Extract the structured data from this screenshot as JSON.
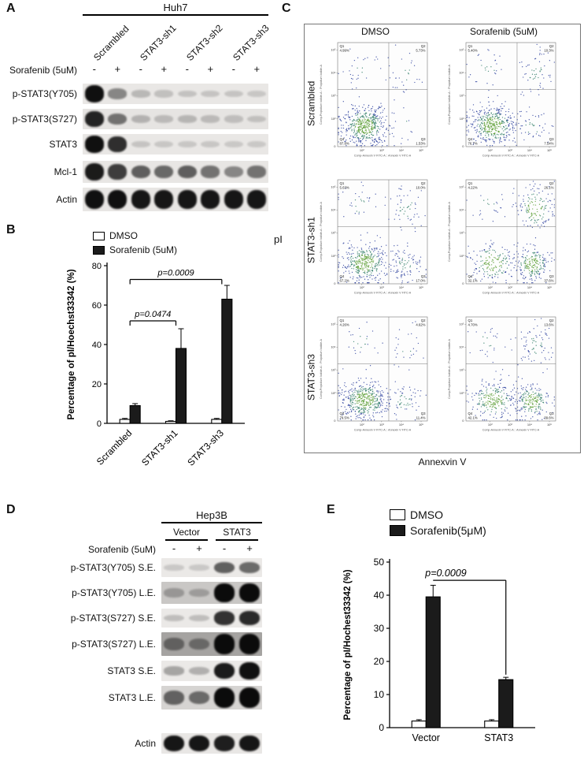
{
  "colors": {
    "scatter_sparse": "#2c3f9e",
    "scatter_mid": "#2f7d66",
    "scatter_dense": "#5a9e32",
    "bar_dark": "#1b1b1b",
    "bar_light": "#ffffff"
  },
  "panel_a": {
    "label": "A",
    "cell_line": "Huh7",
    "treatment_label": "Sorafenib (5uM)",
    "lane_groups": [
      "Scrambled",
      "STAT3-sh1",
      "STAT3-sh2",
      "STAT3-sh3"
    ],
    "lane_signs": [
      "-",
      "+",
      "-",
      "+",
      "-",
      "+",
      "-",
      "+"
    ],
    "blots": [
      {
        "label": "p-STAT3(Y705)",
        "bg": 0.07,
        "bands": [
          0.95,
          0.35,
          0.1,
          0.06,
          0.05,
          0.04,
          0.04,
          0.03
        ]
      },
      {
        "label": "p-STAT3(S727)",
        "bg": 0.09,
        "bands": [
          0.85,
          0.45,
          0.12,
          0.08,
          0.1,
          0.08,
          0.06,
          0.05
        ]
      },
      {
        "label": "STAT3",
        "bg": 0.07,
        "bands": [
          0.95,
          0.8,
          0.04,
          0.03,
          0.03,
          0.03,
          0.02,
          0.02
        ]
      },
      {
        "label": "Mcl-1",
        "bg": 0.08,
        "bands": [
          0.9,
          0.72,
          0.55,
          0.5,
          0.55,
          0.45,
          0.35,
          0.45
        ]
      },
      {
        "label": "Actin",
        "bg": 0.08,
        "bands": [
          0.95,
          0.95,
          0.92,
          0.92,
          0.92,
          0.92,
          0.92,
          0.92
        ]
      }
    ]
  },
  "panel_b": {
    "label": "B",
    "chart_data": {
      "type": "bar",
      "categories": [
        "Scrambled",
        "STAT3-sh1",
        "STAT3-sh3"
      ],
      "series": [
        {
          "name": "DMSO",
          "fill": "#ffffff",
          "values": [
            2,
            1,
            2
          ],
          "errors": [
            0.5,
            0.3,
            0.5
          ]
        },
        {
          "name": "Sorafenib (5uM)",
          "fill": "#1b1b1b",
          "values": [
            9,
            38,
            63
          ],
          "errors": [
            1,
            10,
            7
          ]
        }
      ],
      "ylabel": "Percentage of pI/Hoechst33342 (%)",
      "ylim": [
        0,
        80
      ],
      "yticks": [
        0,
        20,
        40,
        60,
        80
      ],
      "grid": false,
      "legend_position": "top-left",
      "annotations": [
        {
          "type": "bracket",
          "text": "p=0.0474",
          "from": 0,
          "to": 1,
          "y": 52
        },
        {
          "type": "bracket",
          "text": "p=0.0009",
          "from": 0,
          "to": 2,
          "y": 73
        }
      ]
    }
  },
  "panel_c": {
    "label": "C",
    "col_headers": [
      "DMSO",
      "Sorafenib (5uM)"
    ],
    "row_labels": [
      "Scrambled",
      "STAT3-sh1",
      "STAT3-sh3"
    ],
    "outer_y_label": "pI",
    "outer_x_label": "Annexvin V",
    "plot_axis_y_label": "Comp-Propidium Iodide-A :: Propidium Iodide-A",
    "plot_axis_x_label": "Comp-Annexin V FITC-A :: Annexin V FITC-A",
    "axis_ticks": [
      "0",
      "10²",
      "10³",
      "10⁴",
      "10⁵"
    ],
    "quadrant_names": [
      "Q1",
      "Q2",
      "Q3",
      "Q4"
    ],
    "plots": [
      {
        "row": "Scrambled",
        "col": "DMSO",
        "q1": "4.99%",
        "q2": "5.73%",
        "q3": "1.53%",
        "q4": "87.8%"
      },
      {
        "row": "Scrambled",
        "col": "Sorafenib (5uM)",
        "q1": "5.40%",
        "q2": "10.3%",
        "q3": "7.54%",
        "q4": "76.7%"
      },
      {
        "row": "STAT3-sh1",
        "col": "DMSO",
        "q1": "5.63%",
        "q2": "10.0%",
        "q3": "17.0%",
        "q4": "67.2%"
      },
      {
        "row": "STAT3-sh1",
        "col": "Sorafenib (5uM)",
        "q1": "4.22%",
        "q2": "26.1%",
        "q3": "37.6%",
        "q4": "32.1%"
      },
      {
        "row": "STAT3-sh3",
        "col": "DMSO",
        "q1": "4.26%",
        "q2": "4.62%",
        "q3": "11.4%",
        "q4": "79.5%"
      },
      {
        "row": "STAT3-sh3",
        "col": "Sorafenib (5uM)",
        "q1": "4.70%",
        "q2": "13.6%",
        "q3": "39.6%",
        "q4": "42.1%"
      }
    ]
  },
  "panel_d": {
    "label": "D",
    "cell_line": "Hep3B",
    "col_groups": [
      "Vector",
      "STAT3"
    ],
    "treatment_label": "Sorafenib (5uM)",
    "lane_signs": [
      "-",
      "+",
      "-",
      "+"
    ],
    "blots": [
      {
        "label": "p-STAT3(Y705) S.E.",
        "bg": 0.06,
        "bands": [
          0.03,
          0.03,
          0.55,
          0.5
        ]
      },
      {
        "label": "p-STAT3(Y705) L.E.",
        "bg": 0.25,
        "bands": [
          0.15,
          0.12,
          1.0,
          1.0
        ]
      },
      {
        "label": "p-STAT3(S727) S.E.",
        "bg": 0.06,
        "bands": [
          0.08,
          0.08,
          0.78,
          0.82
        ]
      },
      {
        "label": "p-STAT3(S727) L.E.",
        "bg": 0.45,
        "bands": [
          0.35,
          0.3,
          1.0,
          1.0
        ]
      },
      {
        "label": "STAT3 S.E.",
        "bg": 0.06,
        "bands": [
          0.2,
          0.15,
          0.9,
          0.95
        ]
      },
      {
        "label": "STAT3 L.E.",
        "bg": 0.18,
        "bands": [
          0.5,
          0.45,
          1.0,
          1.0
        ]
      },
      {
        "label": "Actin",
        "bg": 0.07,
        "bands": [
          0.92,
          0.92,
          0.88,
          0.92
        ]
      }
    ]
  },
  "panel_e": {
    "label": "E",
    "chart_data": {
      "type": "bar",
      "categories": [
        "Vector",
        "STAT3"
      ],
      "series": [
        {
          "name": "DMSO",
          "fill": "#ffffff",
          "values": [
            2,
            2
          ],
          "errors": [
            0.4,
            0.4
          ]
        },
        {
          "name": "Sorafenib(5μM)",
          "fill": "#1b1b1b",
          "values": [
            39.5,
            14.5
          ],
          "errors": [
            3.5,
            0.7
          ]
        }
      ],
      "ylabel": "Percentage of pI/Hochest33342 (%)",
      "ylim": [
        0,
        50
      ],
      "yticks": [
        0,
        10,
        20,
        30,
        40,
        50
      ],
      "grid": false,
      "legend_position": "top",
      "annotations": [
        {
          "type": "elbow",
          "text": "p=0.0009",
          "series": 1,
          "from": 0,
          "to": 1,
          "y": 44.5,
          "drop_to": 16
        }
      ]
    }
  }
}
